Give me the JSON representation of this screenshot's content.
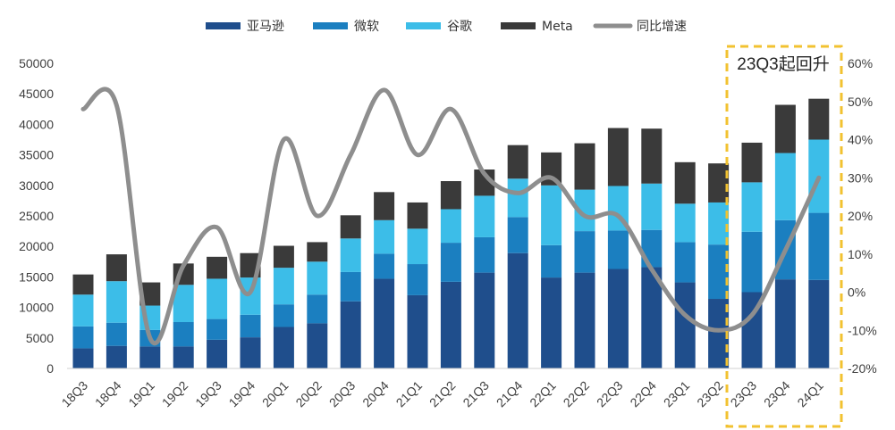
{
  "chart_data": {
    "type": "bar",
    "stacked": true,
    "categories": [
      "18Q3",
      "18Q4",
      "19Q1",
      "19Q2",
      "19Q3",
      "19Q4",
      "20Q1",
      "20Q2",
      "20Q3",
      "20Q4",
      "21Q1",
      "21Q2",
      "21Q3",
      "21Q4",
      "22Q1",
      "22Q2",
      "22Q3",
      "22Q4",
      "23Q1",
      "23Q2",
      "23Q3",
      "23Q4",
      "24Q1"
    ],
    "series": [
      {
        "name": "亚马逊",
        "color": "#1f4e8c",
        "values": [
          3300,
          3700,
          3600,
          3600,
          4700,
          5100,
          6800,
          7400,
          11000,
          14700,
          12000,
          14200,
          15700,
          18900,
          14900,
          15700,
          16300,
          16600,
          14100,
          11400,
          12500,
          14600,
          14500
        ]
      },
      {
        "name": "微软",
        "color": "#1b7fc0",
        "values": [
          3600,
          3800,
          2700,
          4000,
          3400,
          3700,
          3700,
          4700,
          4800,
          4100,
          5100,
          6400,
          5800,
          5900,
          5300,
          6800,
          6300,
          6100,
          6600,
          8900,
          9900,
          9700,
          11000
        ]
      },
      {
        "name": "谷歌",
        "color": "#3cbde8",
        "values": [
          5200,
          6800,
          4000,
          6100,
          6600,
          6100,
          6000,
          5400,
          5500,
          5500,
          5800,
          5500,
          6800,
          6300,
          9800,
          6800,
          7300,
          7600,
          6300,
          6900,
          8100,
          11000,
          12000
        ]
      },
      {
        "name": "Meta",
        "color": "#3a3a3a",
        "values": [
          3300,
          4400,
          3800,
          3500,
          3600,
          4000,
          3600,
          3200,
          3800,
          4600,
          4300,
          4600,
          4300,
          5500,
          5400,
          7600,
          9500,
          9000,
          6800,
          6400,
          6500,
          7900,
          6700
        ]
      }
    ],
    "line": {
      "name": "同比增速",
      "color": "#8e8e8e",
      "axis": "right",
      "values": [
        48,
        49,
        -12,
        7,
        17,
        0,
        40,
        20,
        36,
        53,
        36,
        48,
        31,
        26,
        30,
        20,
        20,
        6,
        -6,
        -10,
        -6,
        11,
        30
      ]
    },
    "y_left": {
      "lim": [
        0,
        50000
      ],
      "ticks": [
        "0",
        "5000",
        "10000",
        "15000",
        "20000",
        "25000",
        "30000",
        "35000",
        "40000",
        "45000",
        "50000"
      ]
    },
    "y_right": {
      "lim": [
        -20,
        60
      ],
      "ticks": [
        "-20%",
        "-10%",
        "0%",
        "10%",
        "20%",
        "30%",
        "40%",
        "50%",
        "60%"
      ]
    },
    "legend_position": "top",
    "grid": false,
    "annotation": {
      "text": "23Q3起回升",
      "highlight_color": "#f2c230"
    }
  }
}
